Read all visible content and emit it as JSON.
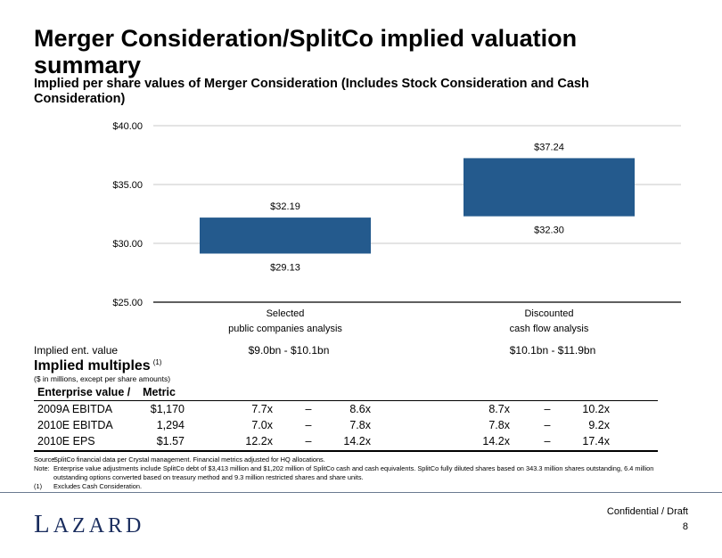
{
  "title": "Merger Consideration/SplitCo implied valuation summary",
  "subtitle": "Implied per share values of Merger Consideration (Includes Stock Consideration and Cash Consideration)",
  "chart_data": {
    "type": "bar",
    "subtype": "floating-range",
    "categories": [
      [
        "Selected",
        "public companies analysis"
      ],
      [
        "Discounted",
        "cash flow analysis"
      ]
    ],
    "ranges": [
      {
        "low": 29.13,
        "high": 32.19,
        "low_label": "$29.13",
        "high_label": "$32.19"
      },
      {
        "low": 32.3,
        "high": 37.24,
        "low_label": "$32.30",
        "high_label": "$37.24"
      }
    ],
    "ylim": [
      25,
      40
    ],
    "yticks": [
      40,
      35,
      30,
      25
    ],
    "ytick_labels": [
      "$40.00",
      "$35.00",
      "$30.00",
      "$25.00"
    ],
    "bar_color": "#245a8d",
    "grid": true
  },
  "implied_ev": {
    "label": "Implied ent. value",
    "values": [
      "$9.0bn - $10.1bn",
      "$10.1bn - $11.9bn"
    ]
  },
  "multiples": {
    "title": "Implied multiples",
    "footnote_mark": "(1)",
    "units": "($ in millions, except per share amounts)",
    "header": "Enterprise value /    Metric",
    "rows": [
      {
        "label": "2009A EBITDA",
        "metric": "$1,170",
        "a_low": "7.7x",
        "a_dash": "–",
        "a_high": "8.6x",
        "b_low": "8.7x",
        "b_dash": "–",
        "b_high": "10.2x"
      },
      {
        "label": "2010E EBITDA",
        "metric": "1,294",
        "a_low": "7.0x",
        "a_dash": "–",
        "a_high": "7.8x",
        "b_low": "7.8x",
        "b_dash": "–",
        "b_high": "9.2x"
      },
      {
        "label": "2010E EPS",
        "metric": "$1.57",
        "a_low": "12.2x",
        "a_dash": "–",
        "a_high": "14.2x",
        "b_low": "14.2x",
        "b_dash": "–",
        "b_high": "17.4x"
      }
    ]
  },
  "notes": [
    {
      "tag": "Source:",
      "text": "SplitCo financial data per Crystal management.  Financial metrics adjusted for HQ allocations."
    },
    {
      "tag": "Note:",
      "text": "Enterprise value adjustments include SplitCo debt of $3,413 million and $1,202 million of SplitCo cash and cash equivalents. SplitCo fully diluted shares based on 343.3 million shares outstanding, 6.4 million outstanding options converted based on treasury method and 9.3 million restricted shares and share units."
    },
    {
      "tag": "(1)",
      "text": "Excludes Cash Consideration."
    }
  ],
  "footer": {
    "logo": "LAZARD",
    "confidential": "Confidential / Draft",
    "page": "8"
  }
}
